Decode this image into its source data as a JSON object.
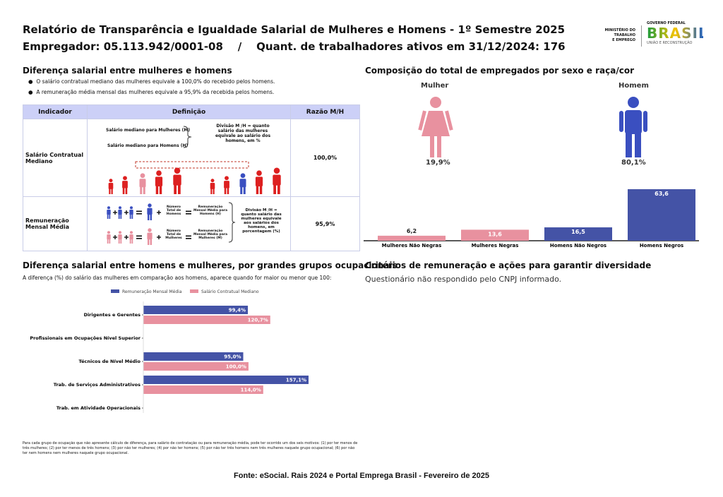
{
  "header": {
    "title": "Relatório de Transparência e Igualdade Salarial de Mulheres e Homens - 1º Semestre 2025",
    "subtitle": "Empregador: 05.113.942/0001-08    /    Quant. de trabalhadores ativos em 31/12/2024: 176"
  },
  "logo": {
    "ministry": [
      "MINISTÉRIO DO",
      "TRABALHO",
      "E EMPREGO"
    ],
    "government": "GOVERNO FEDERAL",
    "brand": "BRASIL",
    "motto": "UNIÃO E RECONSTRUÇÃO"
  },
  "salary_gap": {
    "title": "Diferença salarial entre mulheres e homens",
    "bullets": [
      "O salário contratual mediano das mulheres equivale a 100,0% do recebido pelos homens.",
      "A remuneração média mensal das mulheres equivale a 95,9% da recebida pelos homens."
    ],
    "table": {
      "headers": [
        "Indicador",
        "Definição",
        "Razão M/H"
      ],
      "rows": [
        {
          "indicator": "Salário Contratual Mediano",
          "labels": [
            "Salário mediano para Mulheres (M)",
            "Salário mediano para Homens (H)"
          ],
          "note": "Divisão M /H = quanto salário das mulheres equivale ao salário dos homens, em %",
          "ratio": "100,0%"
        },
        {
          "indicator": "Remuneração Mensal Média",
          "labels": [
            "Número Total de Homens",
            "Remuneração Mensal Média para Homens (H)",
            "Número Total de Mulheres",
            "Remuneração Mensal Média para Mulheres (M)"
          ],
          "note": "Divisão M /H = quanto salário das mulheres equivale aos salários dos homens, em porcentagem (%)",
          "ratio": "95,9%"
        }
      ]
    }
  },
  "composition": {
    "women": {
      "label": "Mulher",
      "share": "19,9%"
    },
    "men": {
      "label": "Homem",
      "share": "80,1%"
    }
  },
  "chart_data": [
    {
      "type": "bar",
      "title": "Composição do total de empregados por sexo e raça/cor",
      "categories": [
        "Mulheres Não Negras",
        "Mulheres Negras",
        "Homens Não Negros",
        "Homens Negros"
      ],
      "values": [
        6.2,
        13.6,
        16.5,
        63.6
      ],
      "value_labels": [
        "6,2",
        "13,6",
        "16,5",
        "63,6"
      ],
      "colors": [
        "#e8919f",
        "#e8919f",
        "#4453a6",
        "#4453a6"
      ]
    },
    {
      "type": "hbar",
      "title": "Diferença salarial entre homens e mulheres, por grandes grupos ocupacionais",
      "subtitle": "A diferença (%) do salário das mulheres em comparação aos homens, aparece quando for maior ou menor que 100:",
      "categories": [
        "Dirigentes e Gerentes",
        "Profissionais em Ocupações Nível Superior",
        "Técnicos de Nível Médio",
        "Trab. de Serviços Administrativos",
        "Trab. em Atividade Operacionais"
      ],
      "series": [
        {
          "name": "Remuneração Mensal Média",
          "color": "#4453a6",
          "values": [
            99.4,
            null,
            95.0,
            157.1,
            null
          ],
          "value_labels": [
            "99,4%",
            null,
            "95,0%",
            "157,1%",
            null
          ]
        },
        {
          "name": "Salário Contratual Mediano",
          "color": "#e8919f",
          "values": [
            120.7,
            null,
            100.0,
            114.0,
            null
          ],
          "value_labels": [
            "120,7%",
            null,
            "100,0%",
            "114,0%",
            null
          ]
        }
      ],
      "footnote": "Para cada grupo de ocupação que não apresente cálculo de diferença, para salário de contratação ou para remuneração média, pode ter ocorrido um dos seis motivos: (1) por ter menos de três mulheres; (2) por ter menos de três homens; (3) por não ter mulheres; (4) por não ter homens; (5) por não ter três homens nem três mulheres naquele grupo ocupacional; (6) por não ter nem homens nem mulheres naquele grupo ocupacional."
    }
  ],
  "criteria": {
    "title": "Critérios de remuneração e ações para garantir diversidade",
    "text": "Questionário não respondido pelo CNPJ informado."
  },
  "footer": "Fonte: eSocial. Rais 2024 e Portal Emprega Brasil - Fevereiro de 2025"
}
